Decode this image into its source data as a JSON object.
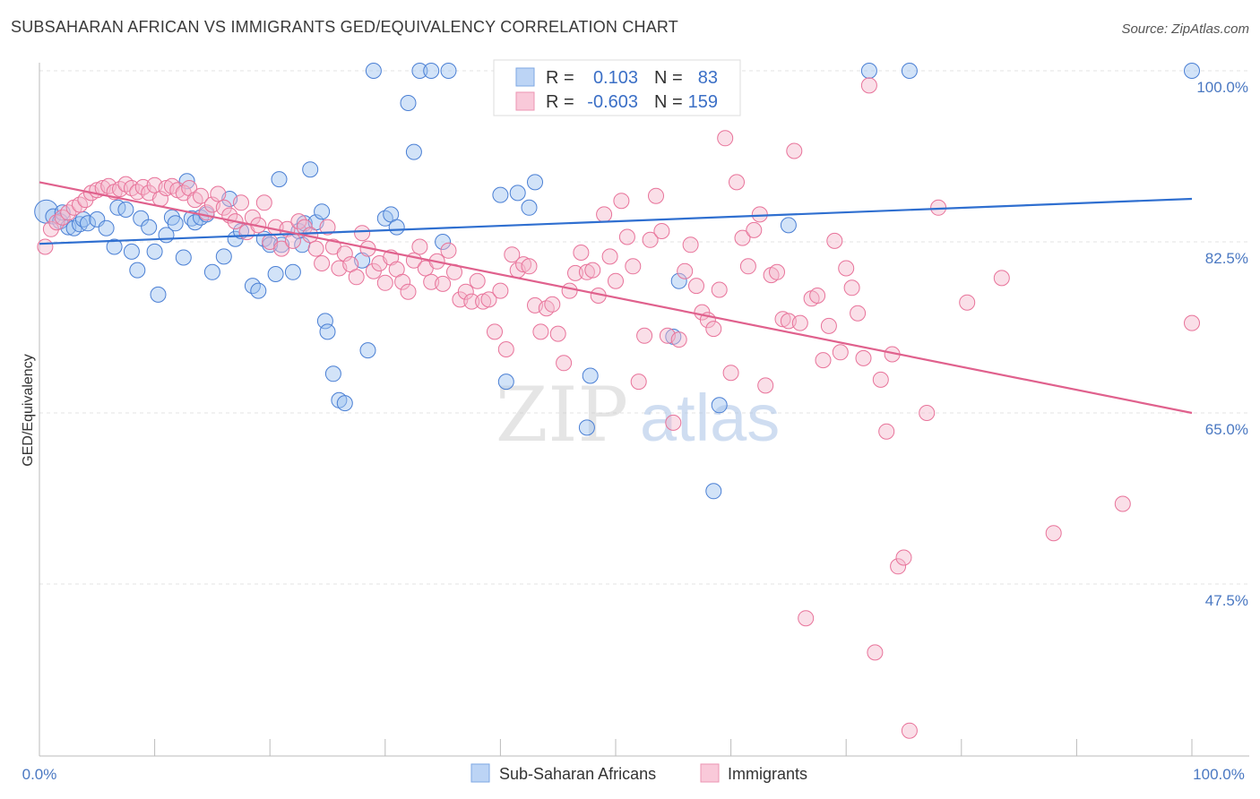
{
  "title": "SUBSAHARAN AFRICAN VS IMMIGRANTS GED/EQUIVALENCY CORRELATION CHART",
  "source": "Source: ZipAtlas.com",
  "watermark": {
    "zip": "ZIP",
    "atlas": "atlas"
  },
  "colors": {
    "blue": "#4a7fd4",
    "blue_fill": "#9cc0ef",
    "pink": "#e8739a",
    "pink_fill": "#f5b8cc",
    "value_text": "#3b6fc6"
  },
  "legend": {
    "rows": [
      {
        "r_label": "R =",
        "r_value": "0.103",
        "n_label": "N =",
        "n_value": "83"
      },
      {
        "r_label": "R =",
        "r_value": "-0.603",
        "n_label": "N =",
        "n_value": "159"
      }
    ]
  },
  "bottom_legend": [
    "Sub-Saharan Africans",
    "Immigrants"
  ],
  "chart_data": {
    "type": "scatter",
    "ylabel": "GED/Equivalency",
    "x_tick_labels": [
      "0.0%",
      "100.0%"
    ],
    "y_tick_labels": [
      "100.0%",
      "82.5%",
      "65.0%",
      "47.5%"
    ],
    "y_ticks": [
      100.0,
      82.5,
      65.0,
      47.5
    ],
    "xlim": [
      0,
      100
    ],
    "ylim": [
      28.0,
      101.5
    ],
    "grid": true,
    "legend_position": "top-center",
    "series": [
      {
        "name": "Sub-Saharan Africans",
        "r": 0.103,
        "n": 83,
        "trend": [
          [
            0,
            82.3
          ],
          [
            100,
            86.9
          ]
        ],
        "points": [
          [
            0.6,
            85.6
          ],
          [
            1.2,
            85.1
          ],
          [
            1.8,
            84.6
          ],
          [
            2.0,
            85.5
          ],
          [
            2.5,
            84.0
          ],
          [
            3.0,
            83.9
          ],
          [
            3.5,
            84.3
          ],
          [
            3.8,
            84.8
          ],
          [
            4.2,
            84.4
          ],
          [
            5.0,
            84.8
          ],
          [
            5.8,
            83.9
          ],
          [
            6.5,
            82.0
          ],
          [
            6.8,
            86.0
          ],
          [
            7.5,
            85.8
          ],
          [
            8.0,
            81.5
          ],
          [
            8.5,
            79.6
          ],
          [
            8.8,
            84.9
          ],
          [
            9.5,
            84.0
          ],
          [
            10.0,
            81.5
          ],
          [
            10.3,
            77.1
          ],
          [
            11.0,
            83.2
          ],
          [
            11.5,
            85.0
          ],
          [
            11.8,
            84.4
          ],
          [
            12.5,
            80.9
          ],
          [
            12.8,
            88.7
          ],
          [
            13.2,
            84.9
          ],
          [
            13.5,
            84.5
          ],
          [
            14.0,
            85.0
          ],
          [
            14.5,
            85.3
          ],
          [
            15.0,
            79.4
          ],
          [
            16.0,
            81.0
          ],
          [
            16.5,
            86.9
          ],
          [
            17.0,
            82.8
          ],
          [
            17.5,
            83.6
          ],
          [
            18.5,
            78.0
          ],
          [
            19.0,
            77.5
          ],
          [
            19.5,
            82.8
          ],
          [
            20.0,
            82.2
          ],
          [
            20.5,
            79.2
          ],
          [
            20.8,
            88.9
          ],
          [
            21.0,
            82.2
          ],
          [
            22.0,
            79.4
          ],
          [
            22.5,
            83.6
          ],
          [
            22.8,
            82.2
          ],
          [
            23.0,
            84.4
          ],
          [
            23.5,
            89.9
          ],
          [
            24.0,
            84.5
          ],
          [
            24.5,
            85.6
          ],
          [
            24.8,
            74.4
          ],
          [
            25.0,
            73.3
          ],
          [
            25.5,
            69.0
          ],
          [
            26.0,
            66.3
          ],
          [
            26.5,
            66.0
          ],
          [
            28.0,
            80.6
          ],
          [
            28.5,
            71.4
          ],
          [
            29.0,
            100.0
          ],
          [
            30.0,
            84.9
          ],
          [
            30.5,
            85.3
          ],
          [
            31.0,
            84.0
          ],
          [
            32.0,
            96.7
          ],
          [
            32.5,
            91.7
          ],
          [
            33.0,
            100.0
          ],
          [
            34.0,
            100.0
          ],
          [
            35.0,
            82.5
          ],
          [
            35.5,
            100.0
          ],
          [
            40.0,
            87.3
          ],
          [
            40.5,
            68.2
          ],
          [
            41.5,
            87.5
          ],
          [
            42.5,
            86.0
          ],
          [
            43.0,
            88.6
          ],
          [
            46.0,
            100.0
          ],
          [
            47.5,
            63.5
          ],
          [
            47.8,
            68.8
          ],
          [
            52.0,
            100.0
          ],
          [
            55.0,
            72.8
          ],
          [
            55.5,
            78.5
          ],
          [
            58.5,
            57.0
          ],
          [
            59.0,
            65.8
          ],
          [
            65.0,
            84.2
          ],
          [
            72.0,
            100.0
          ],
          [
            75.5,
            100.0
          ],
          [
            100.0,
            100.0
          ]
        ]
      },
      {
        "name": "Immigrants",
        "r": -0.603,
        "n": 159,
        "trend": [
          [
            0,
            88.6
          ],
          [
            100,
            65.0
          ]
        ],
        "points": [
          [
            0.5,
            82.0
          ],
          [
            1.0,
            83.8
          ],
          [
            1.5,
            84.5
          ],
          [
            2.0,
            85.0
          ],
          [
            2.5,
            85.5
          ],
          [
            3.0,
            86.0
          ],
          [
            3.5,
            86.3
          ],
          [
            4.0,
            86.8
          ],
          [
            4.5,
            87.5
          ],
          [
            5.0,
            87.8
          ],
          [
            5.5,
            88.0
          ],
          [
            6.0,
            88.2
          ],
          [
            6.5,
            87.6
          ],
          [
            7.0,
            87.9
          ],
          [
            7.5,
            88.4
          ],
          [
            8.0,
            88.0
          ],
          [
            8.5,
            87.6
          ],
          [
            9.0,
            88.1
          ],
          [
            9.5,
            87.5
          ],
          [
            10.0,
            88.3
          ],
          [
            10.5,
            86.9
          ],
          [
            11.0,
            88.0
          ],
          [
            11.5,
            88.2
          ],
          [
            12.0,
            87.8
          ],
          [
            12.5,
            87.5
          ],
          [
            13.0,
            88.0
          ],
          [
            13.5,
            86.8
          ],
          [
            14.0,
            87.2
          ],
          [
            14.5,
            85.5
          ],
          [
            15.0,
            86.3
          ],
          [
            15.5,
            87.4
          ],
          [
            16.0,
            86.0
          ],
          [
            16.5,
            85.2
          ],
          [
            17.0,
            84.6
          ],
          [
            17.5,
            86.5
          ],
          [
            18.0,
            83.5
          ],
          [
            18.5,
            85.0
          ],
          [
            19.0,
            84.2
          ],
          [
            19.5,
            86.5
          ],
          [
            20.0,
            82.5
          ],
          [
            20.5,
            84.0
          ],
          [
            21.0,
            81.8
          ],
          [
            21.5,
            83.8
          ],
          [
            22.0,
            82.6
          ],
          [
            22.5,
            84.6
          ],
          [
            23.0,
            84.0
          ],
          [
            23.5,
            83.2
          ],
          [
            24.0,
            81.8
          ],
          [
            24.5,
            80.3
          ],
          [
            25.0,
            84.0
          ],
          [
            25.5,
            82.0
          ],
          [
            26.0,
            79.8
          ],
          [
            26.5,
            81.3
          ],
          [
            27.0,
            80.2
          ],
          [
            27.5,
            78.9
          ],
          [
            28.0,
            83.4
          ],
          [
            28.5,
            81.8
          ],
          [
            29.0,
            79.5
          ],
          [
            29.5,
            80.3
          ],
          [
            30.0,
            78.3
          ],
          [
            30.5,
            80.9
          ],
          [
            31.0,
            79.7
          ],
          [
            31.5,
            78.4
          ],
          [
            32.0,
            77.4
          ],
          [
            32.5,
            80.6
          ],
          [
            33.0,
            82.0
          ],
          [
            33.5,
            79.8
          ],
          [
            34.0,
            78.4
          ],
          [
            34.5,
            80.5
          ],
          [
            35.0,
            78.2
          ],
          [
            35.5,
            81.6
          ],
          [
            36.0,
            79.4
          ],
          [
            36.5,
            76.6
          ],
          [
            37.0,
            77.4
          ],
          [
            37.5,
            76.4
          ],
          [
            38.0,
            78.5
          ],
          [
            38.5,
            76.4
          ],
          [
            39.0,
            76.6
          ],
          [
            39.5,
            73.3
          ],
          [
            40.0,
            77.5
          ],
          [
            40.5,
            71.5
          ],
          [
            41.0,
            81.2
          ],
          [
            41.5,
            79.6
          ],
          [
            42.0,
            80.2
          ],
          [
            42.5,
            80.0
          ],
          [
            43.0,
            76.0
          ],
          [
            43.5,
            73.3
          ],
          [
            44.0,
            75.7
          ],
          [
            44.5,
            76.1
          ],
          [
            45.0,
            73.1
          ],
          [
            45.5,
            70.1
          ],
          [
            46.0,
            77.5
          ],
          [
            46.5,
            79.3
          ],
          [
            47.0,
            81.4
          ],
          [
            47.5,
            79.4
          ],
          [
            48.0,
            79.6
          ],
          [
            48.5,
            77.0
          ],
          [
            49.0,
            85.3
          ],
          [
            49.5,
            81.0
          ],
          [
            50.0,
            78.5
          ],
          [
            50.5,
            86.7
          ],
          [
            51.0,
            83.0
          ],
          [
            51.5,
            80.0
          ],
          [
            52.0,
            68.2
          ],
          [
            52.5,
            72.9
          ],
          [
            53.0,
            82.7
          ],
          [
            53.5,
            87.2
          ],
          [
            54.0,
            83.6
          ],
          [
            54.5,
            72.9
          ],
          [
            55.0,
            64.0
          ],
          [
            55.5,
            72.5
          ],
          [
            56.0,
            79.5
          ],
          [
            56.5,
            82.2
          ],
          [
            57.0,
            78.0
          ],
          [
            57.5,
            75.3
          ],
          [
            58.0,
            74.5
          ],
          [
            58.5,
            73.6
          ],
          [
            59.0,
            77.6
          ],
          [
            59.5,
            93.1
          ],
          [
            60.0,
            69.1
          ],
          [
            60.5,
            88.6
          ],
          [
            61.0,
            82.9
          ],
          [
            61.5,
            80.0
          ],
          [
            62.0,
            83.7
          ],
          [
            62.5,
            85.3
          ],
          [
            63.0,
            67.8
          ],
          [
            63.5,
            79.1
          ],
          [
            64.0,
            79.4
          ],
          [
            64.5,
            74.6
          ],
          [
            65.0,
            74.4
          ],
          [
            65.5,
            91.8
          ],
          [
            66.0,
            74.2
          ],
          [
            66.5,
            44.0
          ],
          [
            67.0,
            76.7
          ],
          [
            67.5,
            77.0
          ],
          [
            68.0,
            70.4
          ],
          [
            68.5,
            73.9
          ],
          [
            69.0,
            82.6
          ],
          [
            69.5,
            71.2
          ],
          [
            70.0,
            79.8
          ],
          [
            70.5,
            77.8
          ],
          [
            71.0,
            75.2
          ],
          [
            71.5,
            70.6
          ],
          [
            72.0,
            98.5
          ],
          [
            72.5,
            40.5
          ],
          [
            73.0,
            68.4
          ],
          [
            73.5,
            63.1
          ],
          [
            74.0,
            71.0
          ],
          [
            74.5,
            49.3
          ],
          [
            75.0,
            50.2
          ],
          [
            75.5,
            32.5
          ],
          [
            77.0,
            65.0
          ],
          [
            78.0,
            86.0
          ],
          [
            80.5,
            76.3
          ],
          [
            83.5,
            78.8
          ],
          [
            88.0,
            52.7
          ],
          [
            94.0,
            55.7
          ],
          [
            100.0,
            74.2
          ]
        ]
      }
    ]
  }
}
